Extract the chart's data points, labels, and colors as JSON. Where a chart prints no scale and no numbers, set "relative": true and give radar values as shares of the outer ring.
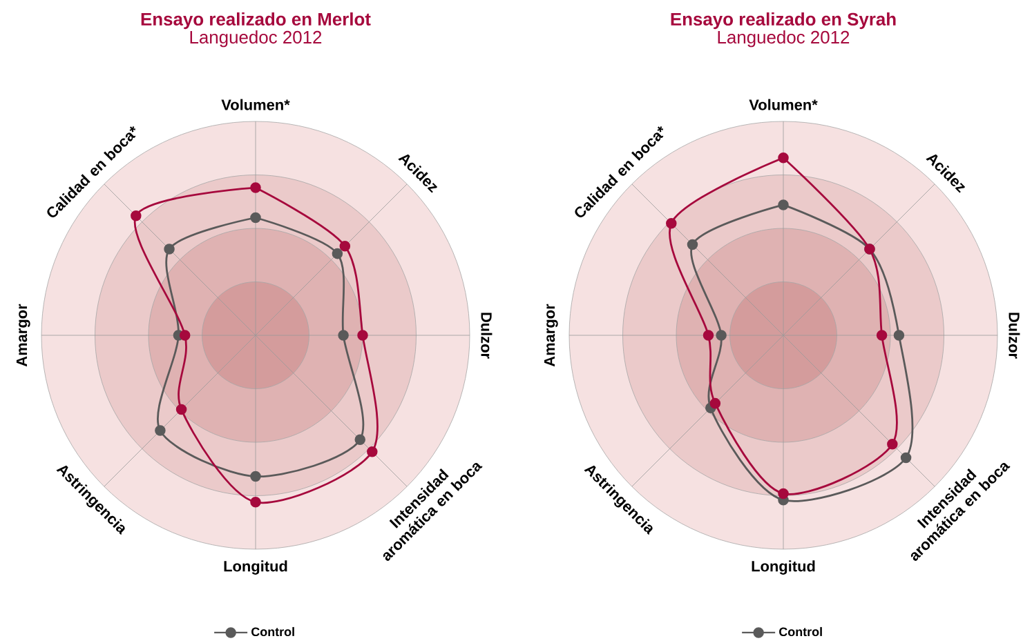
{
  "chart_data": [
    {
      "type": "radar",
      "title": "Ensayo realizado en Merlot",
      "subtitle": "Languedoc 2012",
      "categories": [
        "Volumen*",
        "Acidez",
        "Dulzor",
        "Intensidad aromática en boca",
        "Longitud",
        "Astringencia",
        "Amargor",
        "Calidad en boca*"
      ],
      "relative": true,
      "grid": true,
      "marker": "circle",
      "line_style": "solid",
      "legend": "bottom",
      "series": [
        {
          "name": "Control",
          "color": "#5a5a5a",
          "values": [
            0.55,
            0.54,
            0.41,
            0.69,
            0.66,
            0.63,
            0.36,
            0.57
          ]
        },
        {
          "color": "#a6093d",
          "values": [
            0.69,
            0.59,
            0.5,
            0.77,
            0.78,
            0.49,
            0.33,
            0.79
          ]
        }
      ]
    },
    {
      "type": "radar",
      "title": "Ensayo realizado en Syrah",
      "subtitle": "Languedoc 2012",
      "categories": [
        "Volumen*",
        "Acidez",
        "Dulzor",
        "Intensidad aromática en boca",
        "Longitud",
        "Astringencia",
        "Amargor",
        "Calidad en boca*"
      ],
      "relative": true,
      "grid": true,
      "marker": "circle",
      "line_style": "solid",
      "legend": "bottom",
      "series": [
        {
          "name": "Control",
          "color": "#5a5a5a",
          "values": [
            0.61,
            0.57,
            0.54,
            0.81,
            0.77,
            0.48,
            0.29,
            0.6
          ]
        },
        {
          "color": "#a6093d",
          "values": [
            0.83,
            0.57,
            0.46,
            0.72,
            0.74,
            0.45,
            0.35,
            0.74
          ]
        }
      ]
    }
  ]
}
